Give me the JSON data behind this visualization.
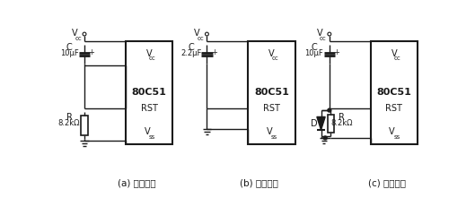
{
  "bg_color": "#ffffff",
  "captions": [
    "(a) 典型电路",
    "(b) 简化电路",
    "(c) 改进电路"
  ],
  "chip_label": "80C51",
  "rst_label": "RST",
  "cap_a_label1": "C",
  "cap_a_label2": "10μF",
  "cap_b_label1": "C",
  "cap_b_label2": "2.2μF",
  "cap_c_label1": "C",
  "cap_c_label2": "10μF",
  "res_a_label1": "R",
  "res_a_label2": "8.2kΩ",
  "res_c_label1": "R",
  "res_c_label2": "8.2kΩ",
  "diode_label": "D",
  "vcc": "V",
  "vss": "V",
  "vcc_sub": "cc",
  "vss_sub": "ss",
  "line_color": "#1a1a1a",
  "text_color": "#1a1a1a"
}
